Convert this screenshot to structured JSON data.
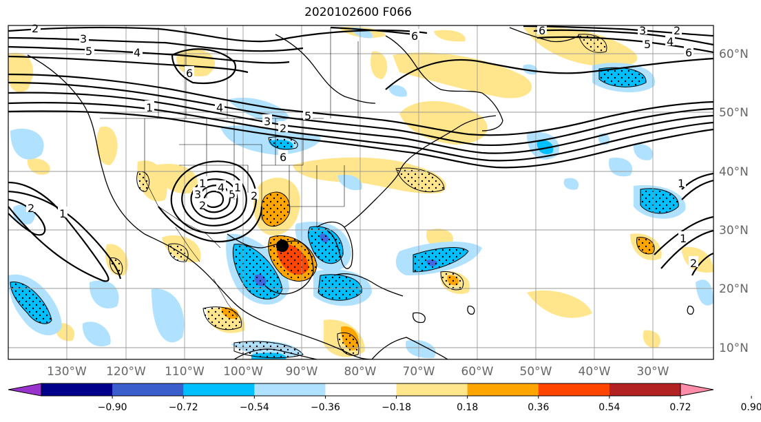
{
  "title": "2020102600 F066",
  "lat_labels": [
    "60°N",
    "50°N",
    "40°N",
    "30°N",
    "20°N",
    "10°N"
  ],
  "lon_labels": [
    "130°W",
    "120°W",
    "110°W",
    "100°W",
    "90°W",
    "80°W",
    "70°W",
    "60°W",
    "50°W",
    "40°W",
    "30°W"
  ],
  "colorbar": {
    "ticks": [
      "−0.90",
      "−0.72",
      "−0.54",
      "−0.36",
      "−0.18",
      "0.18",
      "0.36",
      "0.54",
      "0.72",
      "0.90"
    ],
    "colors": [
      "#9a32cd",
      "#00008b",
      "#3a5fcd",
      "#00bfff",
      "#b0e2ff",
      "#ffffff",
      "#ffe68c",
      "#ffa500",
      "#ff4500",
      "#b22222",
      "#ff8ca8"
    ]
  },
  "contour_labels": [
    "2",
    "3",
    "4",
    "5",
    "6",
    "1",
    "2",
    "3",
    "4",
    "5",
    "6",
    "6",
    "3",
    "2",
    "4",
    "5",
    "6",
    "1",
    "2",
    "3",
    "4",
    "5",
    "6",
    "2",
    "1",
    "2",
    "1",
    "1",
    "2",
    "1"
  ],
  "legend": {
    "palette": {
      "neg_strong": "#00bfff",
      "neg_weak": "#b0e2ff",
      "neg_purple": "#4169e1",
      "pos_weak": "#ffe68c",
      "pos_mid": "#ffa500",
      "pos_strong": "#ff4500"
    }
  }
}
